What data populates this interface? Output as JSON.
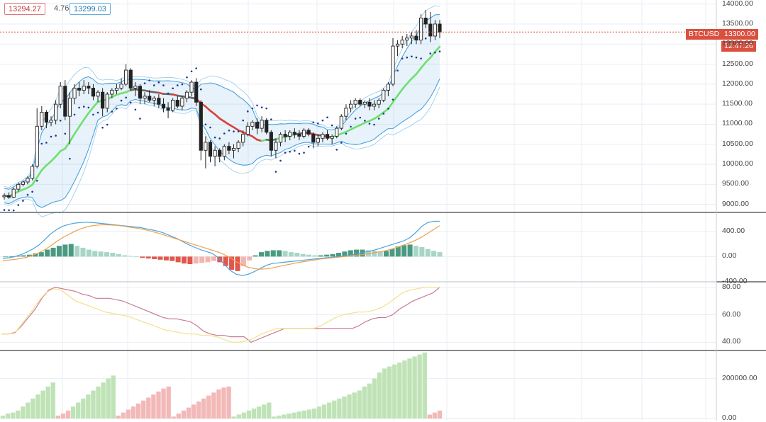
{
  "header": {
    "bid": "13294.27",
    "spread": "4.76",
    "ask": "13299.03"
  },
  "price_tag": {
    "symbol": "BTCUSD",
    "price": "13300.00",
    "countdown": "12:47:26"
  },
  "colors": {
    "up": "#ffffff",
    "candle_border": "#222222",
    "ribbon_up": "#6ee06e",
    "ribbon_down": "#d9413a",
    "ribbon_flat": "#666666",
    "band_line": "#4aa3df",
    "band_fill": "rgba(120,185,230,0.18)",
    "sar": "#1e3a8a",
    "macd_line": "#4aa3df",
    "signal_line": "#f0a04b",
    "hist_up_strong": "#4a9a82",
    "hist_up_weak": "#a8d5c8",
    "hist_down_strong": "#e0584c",
    "hist_down_weak": "#f2b5b0",
    "rsi1": "#c97b94",
    "rsi2": "#f4e08a",
    "vol_up": "#bfe3b6",
    "vol_down": "#f3b8b8",
    "price_line": "#d9503f",
    "panel_sep": "#444444",
    "grid": "#e8eef5"
  },
  "chart_data": [
    {
      "type": "candlestick",
      "panel": "price",
      "ylim": [
        8800,
        14100
      ],
      "yticks": [
        "14000.00",
        "13500.00",
        "13000.00",
        "12500.00",
        "12000.00",
        "11500.00",
        "11000.00",
        "10500.00",
        "10000.00",
        "9500.00",
        "9000.00"
      ],
      "current_price": 13300,
      "ohlc": [
        [
          9190,
          9280,
          9120,
          9220
        ],
        [
          9220,
          9300,
          9140,
          9180
        ],
        [
          9180,
          9420,
          9160,
          9380
        ],
        [
          9380,
          9550,
          9320,
          9500
        ],
        [
          9500,
          9600,
          9450,
          9560
        ],
        [
          9560,
          9700,
          9500,
          9650
        ],
        [
          9650,
          10000,
          9600,
          9950
        ],
        [
          9950,
          11400,
          9900,
          10950
        ],
        [
          10950,
          11450,
          10850,
          11300
        ],
        [
          11300,
          11350,
          10900,
          11050
        ],
        [
          11050,
          11200,
          10950,
          11100
        ],
        [
          11100,
          11600,
          11000,
          11500
        ],
        [
          11500,
          12050,
          11400,
          11950
        ],
        [
          11950,
          12100,
          11100,
          11200
        ],
        [
          11200,
          11800,
          10500,
          11650
        ],
        [
          11650,
          12000,
          11500,
          11900
        ],
        [
          11900,
          12050,
          11700,
          11850
        ],
        [
          11850,
          12100,
          11750,
          11950
        ],
        [
          11950,
          12050,
          11750,
          11900
        ],
        [
          11900,
          12000,
          11600,
          11700
        ],
        [
          11700,
          11850,
          11550,
          11800
        ],
        [
          11800,
          11900,
          11200,
          11400
        ],
        [
          11400,
          11800,
          11300,
          11750
        ],
        [
          11750,
          11900,
          11650,
          11850
        ],
        [
          11850,
          12000,
          11750,
          11900
        ],
        [
          11900,
          12150,
          11850,
          12000
        ],
        [
          12000,
          12500,
          11950,
          12350
        ],
        [
          12350,
          12400,
          11850,
          11900
        ],
        [
          11900,
          12050,
          11700,
          11950
        ],
        [
          11950,
          12000,
          11500,
          11650
        ],
        [
          11650,
          11800,
          11500,
          11700
        ],
        [
          11700,
          11850,
          11550,
          11600
        ],
        [
          11600,
          11700,
          11450,
          11650
        ],
        [
          11650,
          11750,
          11400,
          11500
        ],
        [
          11500,
          11650,
          11300,
          11400
        ],
        [
          11400,
          11550,
          11150,
          11350
        ],
        [
          11350,
          11650,
          11300,
          11600
        ],
        [
          11600,
          11700,
          11400,
          11450
        ],
        [
          11450,
          11700,
          11350,
          11650
        ],
        [
          11650,
          11850,
          11550,
          11800
        ],
        [
          11800,
          12100,
          11700,
          12050
        ],
        [
          12050,
          12150,
          11450,
          11550
        ],
        [
          11550,
          11600,
          10100,
          10350
        ],
        [
          10350,
          10700,
          9900,
          10550
        ],
        [
          10550,
          10600,
          10050,
          10200
        ],
        [
          10200,
          10450,
          9950,
          10350
        ],
        [
          10350,
          10400,
          10050,
          10200
        ],
        [
          10200,
          10500,
          10100,
          10450
        ],
        [
          10450,
          10550,
          10250,
          10350
        ],
        [
          10350,
          10500,
          10150,
          10400
        ],
        [
          10400,
          10600,
          10300,
          10550
        ],
        [
          10550,
          10850,
          10450,
          10750
        ],
        [
          10750,
          11050,
          10700,
          10950
        ],
        [
          10950,
          11100,
          10850,
          11050
        ],
        [
          11050,
          11150,
          10750,
          10900
        ],
        [
          10900,
          11200,
          10800,
          11100
        ],
        [
          11100,
          11150,
          10750,
          10800
        ],
        [
          10800,
          10850,
          10200,
          10350
        ],
        [
          10350,
          10650,
          10150,
          10550
        ],
        [
          10550,
          10800,
          10450,
          10750
        ],
        [
          10750,
          10850,
          10550,
          10700
        ],
        [
          10700,
          10850,
          10600,
          10800
        ],
        [
          10800,
          10900,
          10650,
          10750
        ],
        [
          10750,
          10850,
          10600,
          10700
        ],
        [
          10700,
          10900,
          10650,
          10850
        ],
        [
          10850,
          10900,
          10700,
          10750
        ],
        [
          10750,
          10800,
          10400,
          10550
        ],
        [
          10550,
          10750,
          10450,
          10650
        ],
        [
          10650,
          10800,
          10550,
          10750
        ],
        [
          10750,
          10850,
          10600,
          10650
        ],
        [
          10650,
          10750,
          10500,
          10700
        ],
        [
          10700,
          10950,
          10650,
          10900
        ],
        [
          10900,
          11250,
          10850,
          11200
        ],
        [
          11200,
          11500,
          11100,
          11400
        ],
        [
          11400,
          11600,
          11300,
          11500
        ],
        [
          11500,
          11650,
          11400,
          11600
        ],
        [
          11600,
          11650,
          11450,
          11500
        ],
        [
          11500,
          11600,
          11400,
          11550
        ],
        [
          11550,
          11650,
          11350,
          11450
        ],
        [
          11450,
          11600,
          11350,
          11500
        ],
        [
          11500,
          11650,
          11400,
          11600
        ],
        [
          11600,
          11900,
          11550,
          11850
        ],
        [
          11850,
          12050,
          11700,
          12000
        ],
        [
          12000,
          13150,
          11950,
          12950
        ],
        [
          12950,
          13100,
          12700,
          13000
        ],
        [
          13000,
          13200,
          12900,
          13100
        ],
        [
          13100,
          13250,
          12950,
          13150
        ],
        [
          13150,
          13300,
          13000,
          13200
        ],
        [
          13200,
          13350,
          13000,
          13100
        ],
        [
          13100,
          13750,
          13000,
          13650
        ],
        [
          13650,
          13850,
          13400,
          13500
        ],
        [
          13500,
          13800,
          13050,
          13200
        ],
        [
          13200,
          13600,
          13100,
          13500
        ],
        [
          13500,
          13600,
          13150,
          13300
        ]
      ]
    },
    {
      "type": "line",
      "panel": "macd",
      "ylim": [
        -400,
        700
      ],
      "yticks": [
        "400.00",
        "0.00",
        "-400.00"
      ],
      "series": [
        {
          "role": "macd",
          "values": [
            -30,
            -20,
            0,
            30,
            70,
            120,
            180,
            270,
            360,
            430,
            480,
            510,
            530,
            540,
            545,
            540,
            530,
            520,
            510,
            500,
            490,
            480,
            470,
            460,
            440,
            420,
            400,
            370,
            330,
            290,
            240,
            190,
            150,
            110,
            80,
            50,
            -20,
            -120,
            -220,
            -280,
            -300,
            -280,
            -240,
            -190,
            -140,
            -110,
            -100,
            -90,
            -80,
            -70,
            -60,
            -50,
            -40,
            -30,
            -20,
            -10,
            0,
            10,
            20,
            40,
            60,
            80,
            100,
            130,
            160,
            190,
            220,
            250,
            300,
            380,
            480,
            540,
            560,
            560
          ]
        },
        {
          "role": "signal",
          "values": [
            -60,
            -55,
            -45,
            -30,
            -10,
            20,
            60,
            110,
            170,
            240,
            300,
            350,
            400,
            440,
            470,
            490,
            500,
            505,
            500,
            495,
            485,
            470,
            455,
            440,
            420,
            395,
            370,
            340,
            310,
            280,
            250,
            220,
            190,
            160,
            130,
            100,
            70,
            30,
            -20,
            -80,
            -130,
            -170,
            -190,
            -200,
            -195,
            -180,
            -160,
            -140,
            -120,
            -100,
            -85,
            -70,
            -55,
            -40,
            -30,
            -20,
            -10,
            0,
            10,
            20,
            30,
            45,
            60,
            75,
            95,
            120,
            150,
            185,
            220,
            260,
            310,
            370,
            430,
            490
          ]
        }
      ],
      "histogram": [
        0,
        5,
        10,
        20,
        30,
        50,
        70,
        110,
        140,
        170,
        190,
        200,
        170,
        140,
        110,
        90,
        80,
        70,
        60,
        40,
        20,
        10,
        0,
        -20,
        -30,
        -40,
        -50,
        -60,
        -70,
        -90,
        -110,
        -120,
        -110,
        -100,
        -90,
        -70,
        -90,
        -150,
        -210,
        -230,
        -150,
        -60,
        20,
        70,
        90,
        100,
        100,
        90,
        70,
        60,
        40,
        30,
        20,
        20,
        30,
        40,
        60,
        80,
        100,
        110,
        110,
        100,
        90,
        80,
        90,
        120,
        160,
        180,
        190,
        170,
        150,
        120,
        90,
        70
      ]
    },
    {
      "type": "line",
      "panel": "oscillator",
      "ylim": [
        34,
        84
      ],
      "yticks": [
        "80.00",
        "60.00",
        "40.00"
      ],
      "series": [
        {
          "role": "line1",
          "values": [
            46,
            46,
            47,
            52,
            58,
            64,
            72,
            78,
            80,
            79,
            78,
            77,
            75,
            74,
            72,
            72,
            72,
            71,
            70,
            68,
            66,
            64,
            62,
            60,
            58,
            57,
            57,
            56,
            55,
            52,
            48,
            46,
            45,
            45,
            44,
            44,
            44,
            40,
            42,
            44,
            46,
            48,
            50,
            50,
            50,
            50,
            50,
            50,
            50,
            50,
            50,
            50,
            50,
            52,
            55,
            57,
            58,
            58,
            60,
            64,
            67,
            70,
            72,
            74,
            76,
            80
          ]
        },
        {
          "role": "line2",
          "values": [
            46,
            46,
            48,
            55,
            62,
            70,
            76,
            79,
            78,
            74,
            70,
            68,
            66,
            64,
            62,
            61,
            60,
            59,
            57,
            55,
            53,
            51,
            49,
            48,
            47,
            46,
            46,
            45,
            45,
            44,
            42,
            40,
            40,
            41,
            43,
            46,
            48,
            50,
            50,
            50,
            50,
            50,
            50,
            52,
            55,
            58,
            60,
            61,
            62,
            62,
            63,
            65,
            68,
            72,
            76,
            78,
            79,
            80,
            80,
            80
          ]
        }
      ]
    },
    {
      "type": "bar",
      "panel": "volume",
      "ylim": [
        -10000,
        340000
      ],
      "yticks": [
        "200000.00",
        "0.00"
      ],
      "values": [
        15000,
        25000,
        30000,
        40000,
        60000,
        80000,
        100000,
        120000,
        140000,
        160000,
        180000,
        15000,
        25000,
        40000,
        60000,
        80000,
        100000,
        120000,
        140000,
        160000,
        180000,
        200000,
        215000,
        15000,
        30000,
        45000,
        60000,
        75000,
        90000,
        105000,
        120000,
        135000,
        150000,
        160000,
        10000,
        25000,
        40000,
        55000,
        70000,
        85000,
        100000,
        115000,
        130000,
        145000,
        155000,
        160000,
        10000,
        20000,
        30000,
        40000,
        50000,
        60000,
        70000,
        80000,
        10000,
        15000,
        20000,
        25000,
        30000,
        35000,
        40000,
        45000,
        50000,
        60000,
        70000,
        80000,
        90000,
        100000,
        110000,
        120000,
        130000,
        140000,
        160000,
        175000,
        200000,
        230000,
        250000,
        260000,
        270000,
        280000,
        290000,
        300000,
        310000,
        320000,
        330000,
        20000,
        30000,
        40000
      ],
      "colors_mode": [
        1,
        1,
        1,
        1,
        1,
        1,
        1,
        1,
        1,
        1,
        1,
        0,
        0,
        0,
        1,
        1,
        1,
        1,
        1,
        1,
        1,
        1,
        1,
        0,
        0,
        0,
        0,
        0,
        0,
        0,
        0,
        0,
        0,
        0,
        0,
        0,
        0,
        0,
        0,
        0,
        0,
        0,
        0,
        0,
        0,
        0,
        1,
        1,
        1,
        1,
        1,
        1,
        1,
        1,
        1,
        1,
        1,
        1,
        1,
        1,
        1,
        1,
        1,
        1,
        1,
        1,
        1,
        1,
        1,
        1,
        1,
        1,
        1,
        1,
        1,
        1,
        1,
        1,
        1,
        1,
        1,
        1,
        1,
        1,
        1,
        0,
        0,
        0
      ]
    }
  ]
}
